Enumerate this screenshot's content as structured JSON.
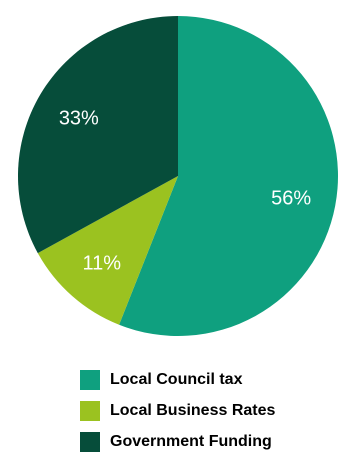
{
  "chart_data": {
    "type": "pie",
    "slices": [
      {
        "label": "Local Council tax",
        "value": 56,
        "value_label": "56%",
        "color": "#0fa07f"
      },
      {
        "label": "Local Business Rates",
        "value": 11,
        "value_label": "11%",
        "color": "#9bc220"
      },
      {
        "label": "Government Funding",
        "value": 33,
        "value_label": "33%",
        "color": "#064d3a"
      }
    ],
    "start": "top, clockwise",
    "legend_position": "bottom"
  }
}
